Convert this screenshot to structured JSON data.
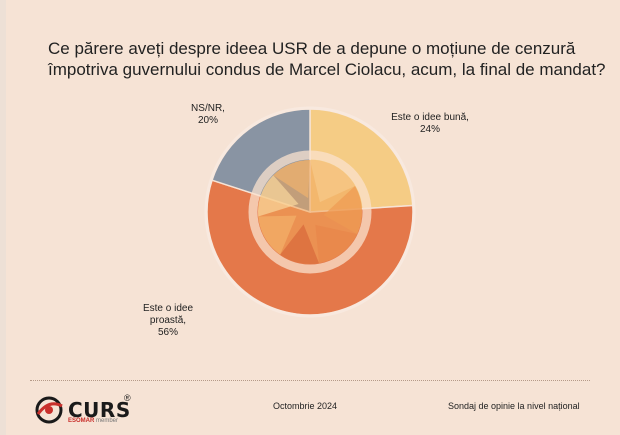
{
  "question": {
    "line1": "Ce părere aveți despre ideea USR de a depune o moțiune de cenzură",
    "line2": "împotriva guvernului condus de Marcel Ciolacu, acum, la final de mandat?"
  },
  "chart_data": {
    "type": "pie",
    "title": "Ce părere aveți despre ideea USR de a depune o moțiune de cenzură împotriva guvernului condus de Marcel Ciolacu, acum, la final de mandat?",
    "unit": "%",
    "slices": [
      {
        "name_line1": "Este o idee bună,",
        "name_line2": "",
        "name_line3": "",
        "value_label": "24%",
        "value": 24,
        "color": "#f5cc85"
      },
      {
        "name_line1": "Este o idee",
        "name_line2": "proastă,",
        "name_line3": "",
        "value_label": "56%",
        "value": 56,
        "color": "#e4784a"
      },
      {
        "name_line1": "NS/NR,",
        "name_line2": "",
        "name_line3": "",
        "value_label": "20%",
        "value": 20,
        "color": "#8994a3"
      }
    ]
  },
  "footer": {
    "logo_text": "CURS",
    "logo_reg": "®",
    "logo_esomar": "ESOMAR",
    "logo_member": "member",
    "date": "Octombrie 2024",
    "survey": "Sondaj de opinie la nivel național"
  }
}
